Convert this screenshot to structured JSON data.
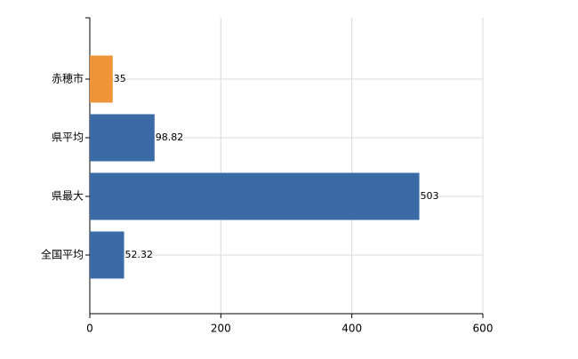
{
  "chart_data": {
    "type": "hbar",
    "categories": [
      "赤穂市",
      "県平均",
      "県最大",
      "全国平均"
    ],
    "values": [
      35,
      98.82,
      503,
      52.32
    ],
    "colors": [
      "#f0943a",
      "#3b6ba6",
      "#3b6ba6",
      "#3b6ba6"
    ],
    "xlim": [
      0,
      600
    ],
    "xticks": [
      0,
      200,
      400,
      600
    ],
    "grid": true
  }
}
